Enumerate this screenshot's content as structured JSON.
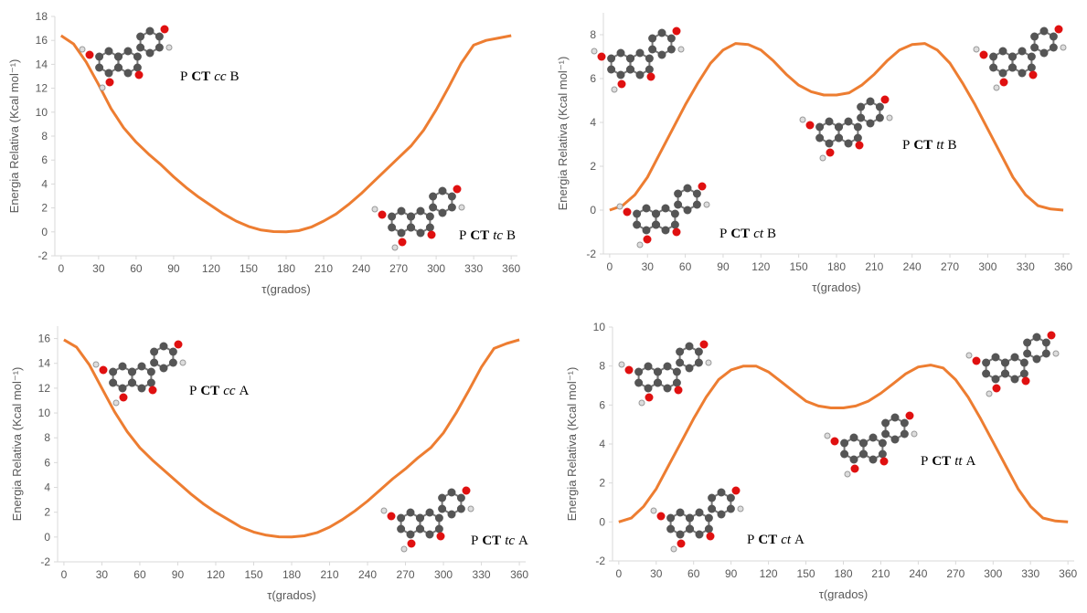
{
  "chart_data": [
    {
      "type": "line",
      "color": "#ed7d31",
      "x": [
        0,
        10,
        20,
        30,
        40,
        50,
        60,
        70,
        80,
        90,
        100,
        110,
        120,
        130,
        140,
        150,
        160,
        170,
        180,
        190,
        200,
        210,
        220,
        230,
        240,
        250,
        260,
        270,
        280,
        290,
        300,
        310,
        320,
        330,
        340,
        350,
        360
      ],
      "values": [
        16.4,
        15.7,
        14.2,
        12.3,
        10.3,
        8.7,
        7.5,
        6.5,
        5.6,
        4.6,
        3.7,
        2.9,
        2.2,
        1.5,
        0.9,
        0.45,
        0.15,
        0.02,
        0,
        0.1,
        0.4,
        0.9,
        1.5,
        2.3,
        3.2,
        4.2,
        5.2,
        6.2,
        7.2,
        8.5,
        10.2,
        12.1,
        14.1,
        15.6,
        16.0,
        16.2,
        16.4
      ],
      "xlim": [
        -5,
        365
      ],
      "xticks": [
        0,
        30,
        60,
        90,
        120,
        150,
        180,
        210,
        240,
        270,
        300,
        330,
        360
      ],
      "ylim": [
        -2,
        18
      ],
      "yticks": [
        -2,
        0,
        2,
        4,
        6,
        8,
        10,
        12,
        14,
        16,
        18
      ],
      "xlabel": "τ(grados)",
      "ylabel": "Energia Relativa (Kcal mol⁻¹)",
      "annotations": [
        {
          "parts": [
            "P",
            "CT",
            "cc",
            "B"
          ]
        },
        {
          "parts": [
            "P",
            "CT",
            "tc",
            "B"
          ]
        }
      ]
    },
    {
      "type": "line",
      "color": "#ed7d31",
      "x": [
        0,
        10,
        20,
        30,
        40,
        50,
        60,
        70,
        80,
        90,
        100,
        110,
        120,
        130,
        140,
        150,
        160,
        170,
        180,
        190,
        200,
        210,
        220,
        230,
        240,
        250,
        260,
        270,
        280,
        290,
        300,
        310,
        320,
        330,
        340,
        350,
        360
      ],
      "values": [
        0,
        0.2,
        0.7,
        1.5,
        2.6,
        3.7,
        4.8,
        5.8,
        6.7,
        7.3,
        7.6,
        7.55,
        7.3,
        6.8,
        6.2,
        5.7,
        5.4,
        5.25,
        5.25,
        5.35,
        5.7,
        6.2,
        6.8,
        7.3,
        7.55,
        7.6,
        7.3,
        6.7,
        5.8,
        4.8,
        3.7,
        2.6,
        1.5,
        0.7,
        0.2,
        0.05,
        0
      ],
      "xlim": [
        -5,
        365
      ],
      "xticks": [
        0,
        30,
        60,
        90,
        120,
        150,
        180,
        210,
        240,
        270,
        300,
        330,
        360
      ],
      "ylim": [
        -2,
        9
      ],
      "yticks": [
        -2,
        0,
        2,
        4,
        6,
        8
      ],
      "xlabel": "τ(grados)",
      "ylabel": "Energia Relativa (Kcal mol⁻¹)",
      "annotations": [
        {
          "parts": [
            "P",
            "CT",
            "tt",
            "B"
          ]
        },
        {
          "parts": [
            "P",
            "CT",
            "ct",
            "B"
          ]
        }
      ]
    },
    {
      "type": "line",
      "color": "#ed7d31",
      "x": [
        0,
        10,
        20,
        30,
        40,
        50,
        60,
        70,
        80,
        90,
        100,
        110,
        120,
        130,
        140,
        150,
        160,
        170,
        180,
        190,
        200,
        210,
        220,
        230,
        240,
        250,
        260,
        270,
        280,
        290,
        300,
        310,
        320,
        330,
        340,
        350,
        360
      ],
      "values": [
        15.9,
        15.3,
        13.9,
        12.0,
        10.1,
        8.5,
        7.2,
        6.2,
        5.3,
        4.4,
        3.5,
        2.7,
        2.0,
        1.4,
        0.8,
        0.4,
        0.15,
        0.02,
        0,
        0.1,
        0.35,
        0.8,
        1.4,
        2.1,
        2.9,
        3.8,
        4.7,
        5.5,
        6.4,
        7.2,
        8.4,
        10.0,
        11.8,
        13.7,
        15.2,
        15.6,
        15.9
      ],
      "xlim": [
        -5,
        365
      ],
      "xticks": [
        0,
        30,
        60,
        90,
        120,
        150,
        180,
        210,
        240,
        270,
        300,
        330,
        360
      ],
      "ylim": [
        -2,
        17
      ],
      "yticks": [
        -2,
        0,
        2,
        4,
        6,
        8,
        10,
        12,
        14,
        16
      ],
      "xlabel": "τ(grados)",
      "ylabel": "Energia Relativa (Kcal mol⁻¹)",
      "annotations": [
        {
          "parts": [
            "P",
            "CT",
            "cc",
            "A"
          ]
        },
        {
          "parts": [
            "P",
            "CT",
            "tc",
            "A"
          ]
        }
      ]
    },
    {
      "type": "line",
      "color": "#ed7d31",
      "x": [
        0,
        10,
        20,
        30,
        40,
        50,
        60,
        70,
        80,
        90,
        100,
        110,
        120,
        130,
        140,
        150,
        160,
        170,
        180,
        190,
        200,
        210,
        220,
        230,
        240,
        250,
        260,
        270,
        280,
        290,
        300,
        310,
        320,
        330,
        340,
        350,
        360
      ],
      "values": [
        0,
        0.2,
        0.8,
        1.7,
        2.9,
        4.1,
        5.3,
        6.4,
        7.3,
        7.8,
        8.0,
        8.0,
        7.7,
        7.2,
        6.7,
        6.2,
        5.95,
        5.85,
        5.85,
        5.95,
        6.2,
        6.6,
        7.1,
        7.6,
        7.95,
        8.05,
        7.9,
        7.3,
        6.4,
        5.3,
        4.1,
        2.9,
        1.7,
        0.8,
        0.2,
        0.05,
        0
      ],
      "xlim": [
        -5,
        365
      ],
      "xticks": [
        0,
        30,
        60,
        90,
        120,
        150,
        180,
        210,
        240,
        270,
        300,
        330,
        360
      ],
      "ylim": [
        -2,
        10
      ],
      "yticks": [
        -2,
        0,
        2,
        4,
        6,
        8,
        10
      ],
      "xlabel": "τ(grados)",
      "ylabel": "Energia Relativa (Kcal mol⁻¹)",
      "annotations": [
        {
          "parts": [
            "P",
            "CT",
            "tt",
            "A"
          ]
        },
        {
          "parts": [
            "P",
            "CT",
            "ct",
            "A"
          ]
        }
      ]
    }
  ]
}
